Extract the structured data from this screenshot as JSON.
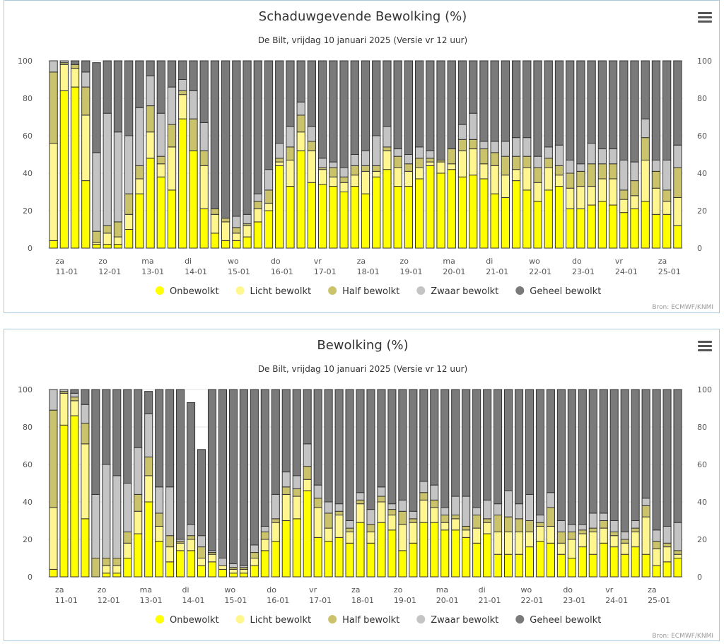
{
  "colors": {
    "onbewolkt": "#ffff00",
    "licht": "#fff68f",
    "half": "#cbc36b",
    "zwaar": "#c4c4c4",
    "geheel": "#7a7a7a"
  },
  "chart_data": [
    {
      "type": "bar",
      "stacked": true,
      "title": "Schaduwgevende Bewolking (%)",
      "subtitle": "De Bilt, vrijdag 10 januari 2025 (Versie vr 12 uur)",
      "credit": "Bron: ECMWF/KNMI",
      "ylim": [
        0,
        100
      ],
      "yticks": [
        "0",
        "20",
        "40",
        "60",
        "80",
        "100"
      ],
      "day_labels": [
        {
          "day": "za",
          "date": "11-01"
        },
        {
          "day": "zo",
          "date": "12-01"
        },
        {
          "day": "ma",
          "date": "13-01"
        },
        {
          "day": "di",
          "date": "14-01"
        },
        {
          "day": "wo",
          "date": "15-01"
        },
        {
          "day": "do",
          "date": "16-01"
        },
        {
          "day": "vr",
          "date": "17-01"
        },
        {
          "day": "za",
          "date": "18-01"
        },
        {
          "day": "zo",
          "date": "19-01"
        },
        {
          "day": "ma",
          "date": "20-01"
        },
        {
          "day": "di",
          "date": "21-01"
        },
        {
          "day": "wo",
          "date": "22-01"
        },
        {
          "day": "do",
          "date": "23-01"
        },
        {
          "day": "vr",
          "date": "24-01"
        },
        {
          "day": "za",
          "date": "25-01"
        }
      ],
      "legend": [
        "Onbewolkt",
        "Licht bewolkt",
        "Half bewolkt",
        "Zwaar bewolkt",
        "Geheel bewolkt"
      ],
      "series": [
        {
          "name": "Onbewolkt",
          "values": [
            4,
            84,
            86,
            36,
            2,
            2,
            2,
            10,
            29,
            48,
            38,
            31,
            69,
            52,
            21,
            8,
            4,
            4,
            6,
            14,
            20,
            44,
            33,
            52,
            35,
            34,
            33,
            30,
            33,
            29,
            38,
            42,
            33,
            33,
            37,
            44,
            40,
            42,
            38,
            39,
            37,
            29,
            27,
            36,
            31,
            25,
            31,
            33,
            21,
            21,
            23,
            25,
            23,
            19,
            21,
            25,
            18,
            18,
            12
          ]
        },
        {
          "name": "Licht bewolkt",
          "values": [
            52,
            14,
            10,
            35,
            1,
            6,
            4,
            8,
            8,
            14,
            7,
            23,
            13,
            0,
            23,
            10,
            10,
            4,
            6,
            7,
            4,
            2,
            14,
            10,
            17,
            8,
            5,
            5,
            6,
            12,
            3,
            10,
            10,
            8,
            6,
            2,
            6,
            3,
            14,
            14,
            8,
            15,
            12,
            6,
            12,
            10,
            12,
            6,
            11,
            12,
            10,
            12,
            14,
            7,
            7,
            22,
            14,
            7,
            15
          ]
        },
        {
          "name": "Half bewolkt",
          "values": [
            38,
            1,
            2,
            15,
            6,
            4,
            8,
            11,
            7,
            14,
            4,
            12,
            2,
            17,
            8,
            3,
            2,
            3,
            1,
            4,
            7,
            2,
            7,
            9,
            5,
            1,
            5,
            3,
            5,
            3,
            3,
            2,
            6,
            4,
            5,
            2,
            1,
            8,
            6,
            5,
            8,
            7,
            10,
            7,
            6,
            8,
            5,
            5,
            8,
            8,
            12,
            8,
            8,
            5,
            8,
            12,
            9,
            6,
            16
          ]
        },
        {
          "name": "Zwaar bewolkt",
          "values": [
            6,
            1,
            0,
            8,
            42,
            60,
            48,
            31,
            31,
            16,
            23,
            20,
            6,
            15,
            15,
            0,
            0,
            6,
            5,
            4,
            11,
            8,
            11,
            7,
            8,
            5,
            3,
            5,
            6,
            8,
            16,
            11,
            4,
            5,
            6,
            4,
            0,
            0,
            8,
            14,
            4,
            6,
            8,
            10,
            10,
            6,
            6,
            11,
            7,
            4,
            11,
            8,
            8,
            16,
            10,
            10,
            6,
            16,
            12
          ]
        },
        {
          "name": "Geheel bewolkt",
          "values": [
            0,
            0,
            2,
            6,
            48,
            28,
            38,
            40,
            25,
            8,
            28,
            14,
            10,
            16,
            33,
            79,
            84,
            83,
            82,
            71,
            58,
            44,
            35,
            22,
            35,
            52,
            54,
            57,
            50,
            48,
            40,
            35,
            47,
            50,
            46,
            48,
            53,
            47,
            34,
            28,
            43,
            43,
            43,
            41,
            41,
            51,
            46,
            45,
            53,
            55,
            44,
            47,
            47,
            53,
            54,
            31,
            53,
            53,
            45
          ]
        }
      ]
    },
    {
      "type": "bar",
      "stacked": true,
      "title": "Bewolking (%)",
      "subtitle": "De Bilt, vrijdag 10 januari 2025 (Versie vr 12 uur)",
      "credit": "Bron: ECMWF/KNMI",
      "ylim": [
        0,
        100
      ],
      "yticks": [
        "0",
        "20",
        "40",
        "60",
        "80",
        "100"
      ],
      "day_labels": [
        {
          "day": "za",
          "date": "11-01"
        },
        {
          "day": "zo",
          "date": "12-01"
        },
        {
          "day": "ma",
          "date": "13-01"
        },
        {
          "day": "di",
          "date": "14-01"
        },
        {
          "day": "wo",
          "date": "15-01"
        },
        {
          "day": "do",
          "date": "16-01"
        },
        {
          "day": "vr",
          "date": "17-01"
        },
        {
          "day": "za",
          "date": "18-01"
        },
        {
          "day": "zo",
          "date": "19-01"
        },
        {
          "day": "ma",
          "date": "20-01"
        },
        {
          "day": "di",
          "date": "21-01"
        },
        {
          "day": "wo",
          "date": "22-01"
        },
        {
          "day": "do",
          "date": "23-01"
        },
        {
          "day": "vr",
          "date": "24-01"
        },
        {
          "day": "za",
          "date": "25-01"
        }
      ],
      "legend": [
        "Onbewolkt",
        "Licht bewolkt",
        "Half bewolkt",
        "Zwaar bewolkt",
        "Geheel bewolkt"
      ],
      "series": [
        {
          "name": "Onbewolkt",
          "values": [
            4,
            81,
            86,
            31,
            0,
            2,
            2,
            10,
            23,
            40,
            19,
            8,
            14,
            14,
            6,
            8,
            4,
            2,
            2,
            6,
            14,
            19,
            30,
            31,
            46,
            21,
            19,
            21,
            18,
            29,
            18,
            29,
            25,
            14,
            18,
            29,
            29,
            25,
            25,
            21,
            18,
            23,
            12,
            12,
            12,
            16,
            19,
            18,
            12,
            10,
            16,
            12,
            18,
            16,
            12,
            16,
            12,
            6,
            8,
            10
          ]
        },
        {
          "name": "Licht bewolkt",
          "values": [
            33,
            17,
            8,
            40,
            0,
            4,
            4,
            8,
            12,
            14,
            8,
            8,
            4,
            6,
            4,
            4,
            2,
            2,
            2,
            4,
            6,
            10,
            14,
            12,
            6,
            16,
            7,
            12,
            6,
            10,
            6,
            11,
            8,
            14,
            11,
            12,
            8,
            4,
            6,
            4,
            8,
            6,
            12,
            12,
            12,
            8,
            8,
            9,
            6,
            10,
            7,
            12,
            8,
            6,
            6,
            8,
            20,
            9,
            8,
            2
          ]
        },
        {
          "name": "Half bewolkt",
          "values": [
            52,
            1,
            2,
            11,
            10,
            4,
            4,
            6,
            9,
            10,
            7,
            6,
            1,
            2,
            6,
            1,
            0,
            1,
            1,
            3,
            4,
            2,
            4,
            4,
            7,
            5,
            8,
            2,
            2,
            2,
            4,
            3,
            3,
            7,
            2,
            4,
            4,
            4,
            2,
            2,
            7,
            2,
            9,
            8,
            7,
            6,
            2,
            10,
            6,
            4,
            2,
            2,
            4,
            2,
            2,
            2,
            6,
            4,
            2,
            2
          ]
        },
        {
          "name": "Zwaar bewolkt",
          "values": [
            11,
            1,
            2,
            10,
            34,
            50,
            44,
            26,
            25,
            23,
            14,
            26,
            1,
            6,
            6,
            1,
            4,
            2,
            1,
            4,
            3,
            13,
            8,
            7,
            12,
            7,
            6,
            4,
            4,
            4,
            8,
            5,
            3,
            6,
            4,
            6,
            8,
            4,
            10,
            16,
            4,
            10,
            6,
            14,
            8,
            14,
            4,
            8,
            6,
            4,
            3,
            8,
            4,
            6,
            4,
            4,
            4,
            6,
            9,
            15
          ]
        },
        {
          "name": "Geheel bewolkt",
          "values": [
            0,
            0,
            2,
            8,
            56,
            40,
            46,
            50,
            31,
            12,
            52,
            52,
            80,
            65,
            46,
            86,
            90,
            93,
            94,
            83,
            73,
            56,
            44,
            46,
            29,
            51,
            60,
            61,
            70,
            55,
            64,
            52,
            61,
            59,
            65,
            49,
            51,
            63,
            57,
            57,
            63,
            59,
            61,
            54,
            61,
            56,
            67,
            55,
            70,
            72,
            72,
            66,
            66,
            70,
            76,
            70,
            58,
            75,
            73,
            71
          ]
        }
      ]
    }
  ]
}
